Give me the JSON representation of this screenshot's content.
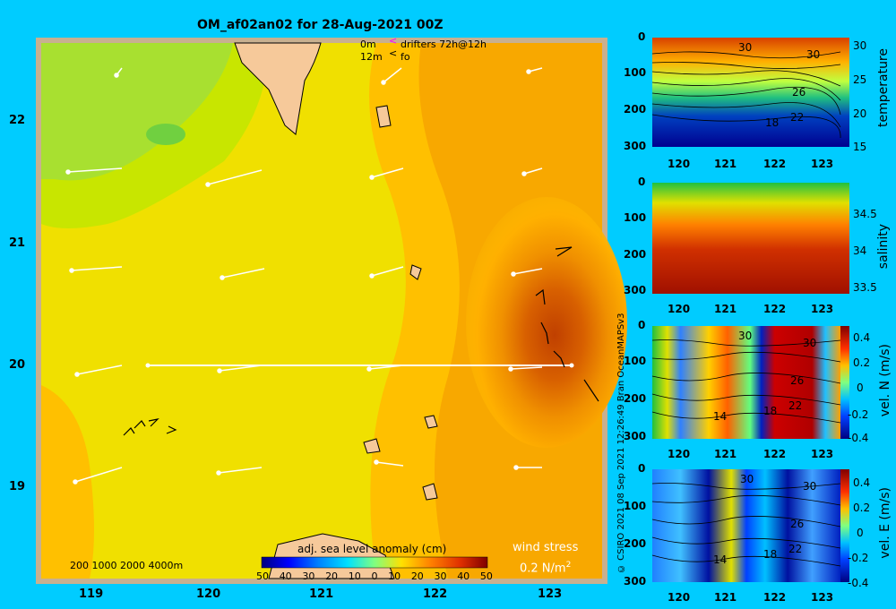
{
  "title": "OM_af02an02 for 28-Aug-2021 00Z",
  "legend": {
    "row1_depth": "0m",
    "row1_text": "drifters 72h@12h",
    "row2_depth": "12m",
    "row2_text": "fo"
  },
  "map": {
    "x_ticks": [
      "119",
      "120",
      "121",
      "122",
      "123"
    ],
    "y_ticks": [
      "22",
      "21",
      "20",
      "19"
    ],
    "depth_contours_label": "200  1000  2000  4000m",
    "colorbar_title": "adj. sea level anomaly (cm)",
    "colorbar_ticks": [
      "50",
      "40",
      "30",
      "20",
      "10",
      "0",
      "10",
      "20",
      "30",
      "40",
      "50"
    ],
    "wind_stress_title": "wind stress",
    "wind_stress_scale": "0.2 N/m",
    "wind_stress_exp": "2"
  },
  "panels": [
    {
      "name": "temperature",
      "y_ticks": [
        "0",
        "100",
        "200",
        "300"
      ],
      "x_ticks": [
        "120",
        "121",
        "122",
        "123"
      ],
      "cbar_ticks": [
        "30",
        "25",
        "20",
        "15"
      ],
      "cbar_label": "temperature",
      "contour_labels": [
        "30",
        "30",
        "26",
        "22",
        "18"
      ]
    },
    {
      "name": "salinity",
      "y_ticks": [
        "0",
        "100",
        "200",
        "300"
      ],
      "x_ticks": [
        "120",
        "121",
        "122",
        "123"
      ],
      "cbar_ticks": [
        "34.5",
        "34",
        "33.5"
      ],
      "cbar_label": "salinity",
      "contour_labels": []
    },
    {
      "name": "vel-n",
      "y_ticks": [
        "0",
        "100",
        "200",
        "300"
      ],
      "x_ticks": [
        "120",
        "121",
        "122",
        "123"
      ],
      "cbar_ticks": [
        "0.4",
        "0.2",
        "0",
        "-0.2",
        "-0.4"
      ],
      "cbar_label": "vel. N (m/s)",
      "contour_labels": [
        "30",
        "30",
        "26",
        "22",
        "18",
        "14"
      ]
    },
    {
      "name": "vel-e",
      "y_ticks": [
        "0",
        "100",
        "200",
        "300"
      ],
      "x_ticks": [
        "120",
        "121",
        "122",
        "123"
      ],
      "cbar_ticks": [
        "0.4",
        "0.2",
        "0",
        "-0.2",
        "-0.4"
      ],
      "cbar_label": "vel. E (m/s)",
      "contour_labels": [
        "30",
        "30",
        "26",
        "22",
        "18",
        "14"
      ]
    }
  ],
  "credit_text": "© CSIRO 2021   08 Sep 2021 12:26:49 Bran OceanMAPSv3"
}
